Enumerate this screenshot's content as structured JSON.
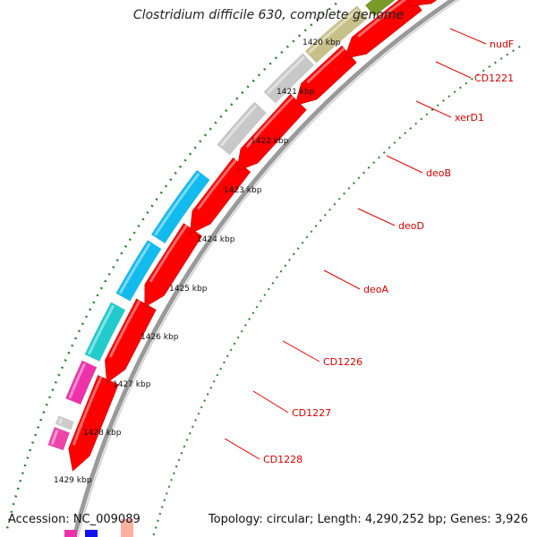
{
  "title": "Clostridium difficile 630, complete genome",
  "accession": "Accession: NC_009089",
  "summary": "Topology: circular; Length: 4,290,252 bp; Genes: 3,926",
  "colors": {
    "backbone": "#9a9a9a",
    "forward_gene": "#ff0000",
    "tick_dots": "#2e7d2e",
    "label_text": "#d40000",
    "leader_line": "#e00000"
  },
  "tick_labels": [
    "1420 kbp",
    "1421 kbp",
    "1422 kbp",
    "1423 kbp",
    "1424 kbp",
    "1425 kbp",
    "1426 kbp",
    "1427 kbp",
    "1428 kbp",
    "1429 kbp"
  ],
  "genes": [
    {
      "name": "nudF",
      "color": "#ee44aa"
    },
    {
      "name": "CD1221",
      "color": "#cccccc"
    },
    {
      "name": "xerD1",
      "color": "#ee33aa"
    },
    {
      "name": "deoB",
      "color": "#22cccc"
    },
    {
      "name": "deoD",
      "color": "#11bbee"
    },
    {
      "name": "deoA",
      "color": "#11bbee"
    },
    {
      "name": "CD1226",
      "color": "#c8c8c8"
    },
    {
      "name": "CD1227",
      "color": "#c8c8c8"
    },
    {
      "name": "CD1228",
      "color": "#c8c08a"
    }
  ]
}
